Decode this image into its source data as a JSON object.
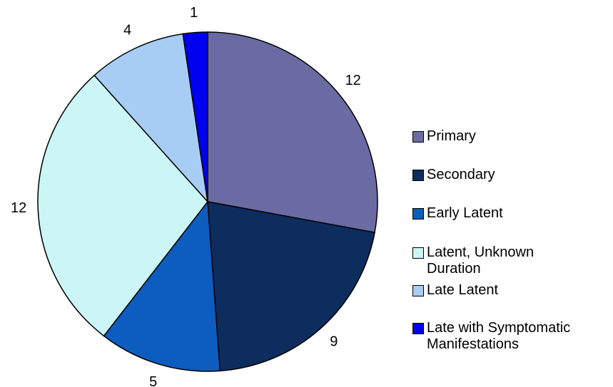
{
  "chart_data": {
    "type": "pie",
    "categories": [
      "Primary",
      "Secondary",
      "Early Latent",
      "Latent, Unknown Duration",
      "Late Latent",
      "Late with Symptomatic Manifestations"
    ],
    "values": [
      12,
      9,
      5,
      12,
      4,
      1
    ],
    "colors": [
      "#6b6ba3",
      "#0d2d5e",
      "#0d5cbf",
      "#ccf5f5",
      "#a8cdf5",
      "#0000f0"
    ]
  }
}
